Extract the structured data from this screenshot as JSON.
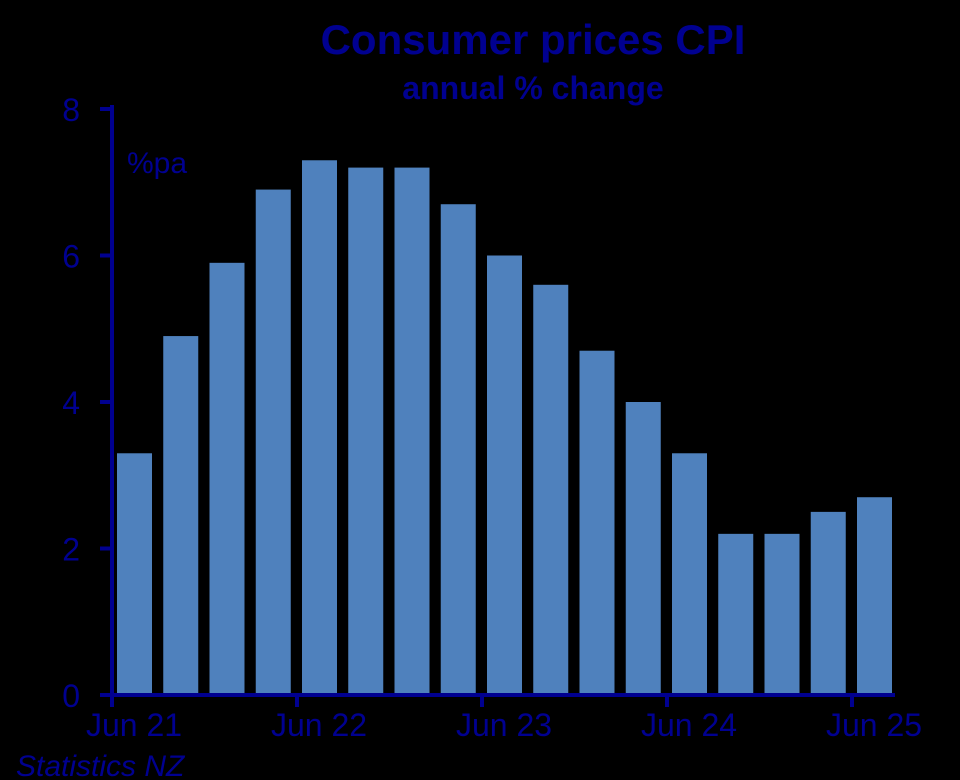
{
  "chart_data": {
    "type": "bar",
    "title": "Consumer prices CPI",
    "subtitle": "annual % change",
    "unit_label": "%pa",
    "source": "Statistics NZ",
    "xlabel": "",
    "ylabel": "",
    "ylim": [
      0,
      8
    ],
    "yticks": [
      0,
      2,
      4,
      6,
      8
    ],
    "xtick_labels": [
      "Jun 21",
      "Jun 22",
      "Jun 23",
      "Jun 24",
      "Jun 25"
    ],
    "categories": [
      "Jun 21",
      "Sep 21",
      "Dec 21",
      "Mar 22",
      "Jun 22",
      "Sep 22",
      "Dec 22",
      "Mar 23",
      "Jun 23",
      "Sep 23",
      "Dec 23",
      "Mar 24",
      "Jun 24",
      "Sep 24",
      "Dec 24",
      "Mar 25",
      "Jun 25"
    ],
    "values": [
      3.3,
      4.9,
      5.9,
      6.9,
      7.3,
      7.2,
      7.2,
      6.7,
      6.0,
      5.6,
      4.7,
      4.0,
      3.3,
      2.2,
      2.2,
      2.5,
      2.7
    ],
    "grid": false,
    "colors": {
      "bar": "#4F81BD",
      "text": "#000090",
      "axis": "#000090",
      "background": "#000000"
    }
  }
}
